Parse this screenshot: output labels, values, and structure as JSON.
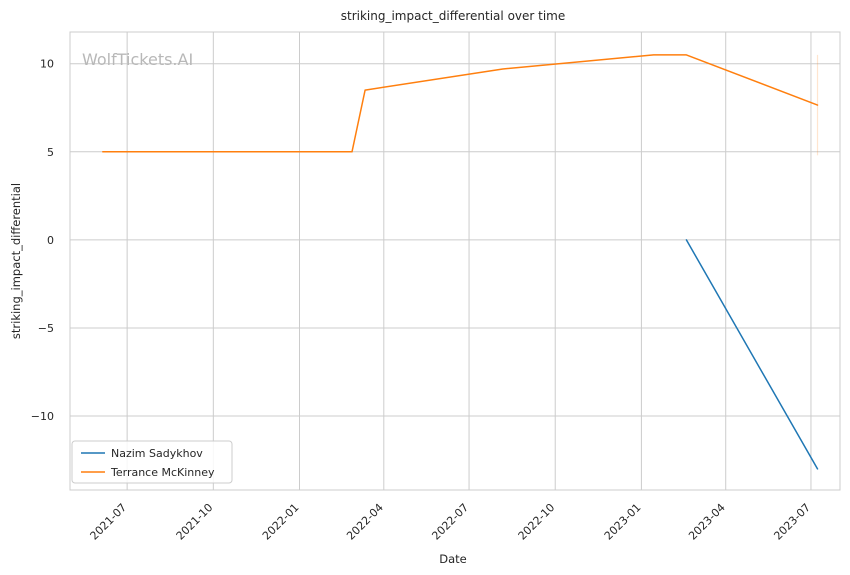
{
  "chart_data": {
    "type": "line",
    "title": "striking_impact_differential over time",
    "xlabel": "Date",
    "ylabel": "striking_impact_differential",
    "watermark": "WolfTickets.AI",
    "x_type": "date",
    "xlim": [
      "2021-05-01",
      "2023-08-01"
    ],
    "ylim": [
      -14.2,
      11.8
    ],
    "x_ticks": [
      "2021-07-01",
      "2021-10-01",
      "2022-01-01",
      "2022-04-01",
      "2022-07-01",
      "2022-10-01",
      "2023-01-01",
      "2023-04-01",
      "2023-07-01"
    ],
    "x_tick_labels": [
      "2021-07",
      "2021-10",
      "2022-01",
      "2022-04",
      "2022-07",
      "2022-10",
      "2023-01",
      "2023-04",
      "2023-07"
    ],
    "y_ticks": [
      -10,
      -5,
      0,
      5,
      10
    ],
    "y_tick_labels": [
      "−10",
      "−5",
      "0",
      "5",
      "10"
    ],
    "grid": true,
    "legend_position": "bottom-left",
    "series": [
      {
        "name": "Nazim Sadykhov",
        "color": "#1f77b4",
        "x": [
          "2023-02-18",
          "2023-07-08"
        ],
        "y": [
          0,
          -13
        ]
      },
      {
        "name": "Terrance McKinney",
        "color": "#ff7f0e",
        "x": [
          "2021-06-05",
          "2022-02-26",
          "2022-03-12",
          "2022-08-06",
          "2023-01-14",
          "2023-02-18",
          "2023-07-08"
        ],
        "y": [
          5.0,
          5.0,
          8.5,
          9.7,
          10.5,
          10.5,
          7.65
        ]
      }
    ],
    "annotations": [
      {
        "type": "vertical_segment",
        "color": "#ff7f0e",
        "x": "2023-07-08",
        "y_range": [
          4.8,
          10.5
        ],
        "opacity": 0.2
      }
    ]
  }
}
